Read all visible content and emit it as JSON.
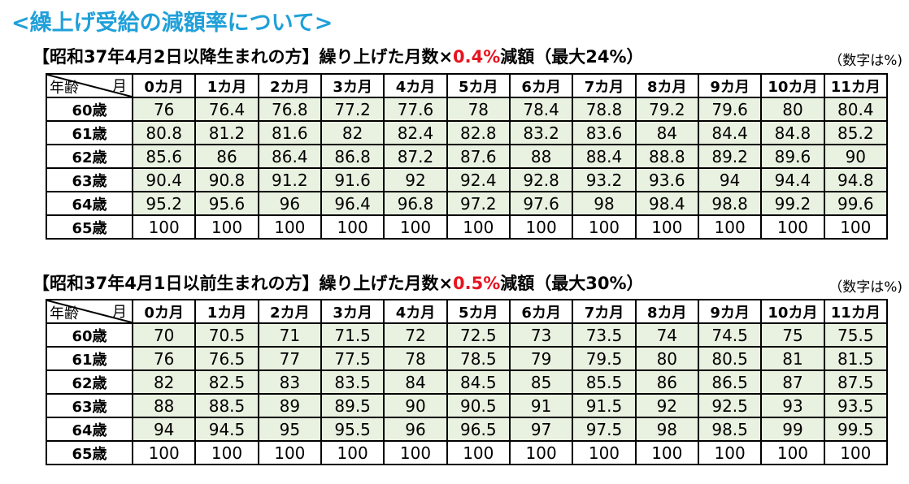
{
  "page": {
    "title": "<繰上げ受給の減額率について>"
  },
  "sections": [
    {
      "heading_a": "【昭和37年4月2日以降生まれの方】繰り上げた月数×",
      "heading_rate": "0.4%",
      "heading_b": "減額（最大24%）",
      "unit": "（数字は%)",
      "corner_month": "月",
      "corner_age": "年齢",
      "months": [
        "0カ月",
        "1カ月",
        "2カ月",
        "3カ月",
        "4カ月",
        "5カ月",
        "6カ月",
        "7カ月",
        "8カ月",
        "9カ月",
        "10カ月",
        "11カ月"
      ],
      "rows": [
        {
          "age": "60歳",
          "values": [
            "76",
            "76.4",
            "76.8",
            "77.2",
            "77.6",
            "78",
            "78.4",
            "78.8",
            "79.2",
            "79.6",
            "80",
            "80.4"
          ]
        },
        {
          "age": "61歳",
          "values": [
            "80.8",
            "81.2",
            "81.6",
            "82",
            "82.4",
            "82.8",
            "83.2",
            "83.6",
            "84",
            "84.4",
            "84.8",
            "85.2"
          ]
        },
        {
          "age": "62歳",
          "values": [
            "85.6",
            "86",
            "86.4",
            "86.8",
            "87.2",
            "87.6",
            "88",
            "88.4",
            "88.8",
            "89.2",
            "89.6",
            "90"
          ]
        },
        {
          "age": "63歳",
          "values": [
            "90.4",
            "90.8",
            "91.2",
            "91.6",
            "92",
            "92.4",
            "92.8",
            "93.2",
            "93.6",
            "94",
            "94.4",
            "94.8"
          ]
        },
        {
          "age": "64歳",
          "values": [
            "95.2",
            "95.6",
            "96",
            "96.4",
            "96.8",
            "97.2",
            "97.6",
            "98",
            "98.4",
            "98.8",
            "99.2",
            "99.6"
          ]
        },
        {
          "age": "65歳",
          "values": [
            "100",
            "100",
            "100",
            "100",
            "100",
            "100",
            "100",
            "100",
            "100",
            "100",
            "100",
            "100"
          ]
        }
      ]
    },
    {
      "heading_a": "【昭和37年4月1日以前生まれの方】繰り上げた月数×",
      "heading_rate": "0.5%",
      "heading_b": "減額（最大30%）",
      "unit": "（数字は%)",
      "corner_month": "月",
      "corner_age": "年齢",
      "months": [
        "0カ月",
        "1カ月",
        "2カ月",
        "3カ月",
        "4カ月",
        "5カ月",
        "6カ月",
        "7カ月",
        "8カ月",
        "9カ月",
        "10カ月",
        "11カ月"
      ],
      "rows": [
        {
          "age": "60歳",
          "values": [
            "70",
            "70.5",
            "71",
            "71.5",
            "72",
            "72.5",
            "73",
            "73.5",
            "74",
            "74.5",
            "75",
            "75.5"
          ]
        },
        {
          "age": "61歳",
          "values": [
            "76",
            "76.5",
            "77",
            "77.5",
            "78",
            "78.5",
            "79",
            "79.5",
            "80",
            "80.5",
            "81",
            "81.5"
          ]
        },
        {
          "age": "62歳",
          "values": [
            "82",
            "82.5",
            "83",
            "83.5",
            "84",
            "84.5",
            "85",
            "85.5",
            "86",
            "86.5",
            "87",
            "87.5"
          ]
        },
        {
          "age": "63歳",
          "values": [
            "88",
            "88.5",
            "89",
            "89.5",
            "90",
            "90.5",
            "91",
            "91.5",
            "92",
            "92.5",
            "93",
            "93.5"
          ]
        },
        {
          "age": "64歳",
          "values": [
            "94",
            "94.5",
            "95",
            "95.5",
            "96",
            "96.5",
            "97",
            "97.5",
            "98",
            "98.5",
            "99",
            "99.5"
          ]
        },
        {
          "age": "65歳",
          "values": [
            "100",
            "100",
            "100",
            "100",
            "100",
            "100",
            "100",
            "100",
            "100",
            "100",
            "100",
            "100"
          ]
        }
      ]
    }
  ],
  "colors": {
    "title": "#1fa0d9",
    "rate_highlight": "#e8141f",
    "cell_fill": "#e9f1e0"
  }
}
